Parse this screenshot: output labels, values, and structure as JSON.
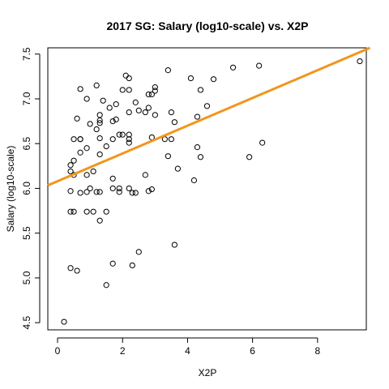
{
  "chart_data": {
    "type": "scatter",
    "title": "2017 SG: Salary (log10-scale) vs. X2P",
    "xlabel": "X2P",
    "ylabel": "Salary (log10-scale)",
    "xlim": [
      -0.3,
      9.5
    ],
    "ylim": [
      4.42,
      7.57
    ],
    "x_ticks": [
      0,
      2,
      4,
      6,
      8
    ],
    "y_ticks": [
      4.5,
      5.0,
      5.5,
      6.0,
      6.5,
      7.0,
      7.5
    ],
    "x_tick_labels": [
      "0",
      "2",
      "4",
      "6",
      "8"
    ],
    "y_tick_labels": [
      "4.5",
      "5.0",
      "5.5",
      "6.0",
      "6.5",
      "7.0",
      "7.5"
    ],
    "grid": false,
    "point_style": "open-circle",
    "point_color": "#000000",
    "trend_line": {
      "intercept": 6.08,
      "slope": 0.155,
      "color": "#f0961e"
    },
    "points": [
      [
        0.2,
        4.51
      ],
      [
        0.4,
        5.11
      ],
      [
        0.6,
        5.08
      ],
      [
        0.4,
        5.74
      ],
      [
        0.5,
        5.74
      ],
      [
        0.4,
        5.97
      ],
      [
        0.4,
        6.19
      ],
      [
        0.4,
        6.26
      ],
      [
        0.5,
        6.15
      ],
      [
        0.5,
        6.31
      ],
      [
        0.5,
        6.55
      ],
      [
        0.6,
        6.78
      ],
      [
        0.7,
        7.11
      ],
      [
        0.7,
        6.55
      ],
      [
        0.7,
        6.4
      ],
      [
        0.7,
        6.55
      ],
      [
        0.7,
        5.95
      ],
      [
        0.9,
        7.0
      ],
      [
        0.9,
        6.45
      ],
      [
        0.9,
        6.15
      ],
      [
        0.9,
        5.74
      ],
      [
        0.9,
        5.96
      ],
      [
        1.0,
        6.72
      ],
      [
        1.0,
        6.0
      ],
      [
        1.1,
        6.19
      ],
      [
        1.1,
        5.74
      ],
      [
        1.2,
        7.15
      ],
      [
        1.2,
        6.66
      ],
      [
        1.2,
        5.96
      ],
      [
        1.3,
        6.82
      ],
      [
        1.3,
        6.76
      ],
      [
        1.3,
        6.73
      ],
      [
        1.3,
        6.56
      ],
      [
        1.3,
        6.38
      ],
      [
        1.3,
        5.96
      ],
      [
        1.3,
        5.64
      ],
      [
        1.4,
        6.98
      ],
      [
        1.5,
        6.47
      ],
      [
        1.5,
        5.74
      ],
      [
        1.5,
        4.92
      ],
      [
        1.6,
        6.9
      ],
      [
        1.7,
        6.75
      ],
      [
        1.7,
        6.55
      ],
      [
        1.7,
        6.11
      ],
      [
        1.7,
        6.0
      ],
      [
        1.7,
        5.16
      ],
      [
        1.8,
        6.94
      ],
      [
        1.8,
        6.77
      ],
      [
        1.9,
        6.6
      ],
      [
        1.9,
        6.0
      ],
      [
        1.9,
        5.96
      ],
      [
        2.0,
        7.1
      ],
      [
        2.0,
        6.6
      ],
      [
        2.1,
        7.26
      ],
      [
        2.2,
        7.23
      ],
      [
        2.2,
        6.85
      ],
      [
        2.2,
        6.6
      ],
      [
        2.2,
        6.55
      ],
      [
        2.2,
        6.51
      ],
      [
        2.2,
        6.0
      ],
      [
        2.2,
        7.1
      ],
      [
        2.3,
        5.95
      ],
      [
        2.3,
        5.14
      ],
      [
        2.4,
        6.96
      ],
      [
        2.4,
        5.95
      ],
      [
        2.5,
        6.87
      ],
      [
        2.5,
        5.29
      ],
      [
        2.7,
        6.15
      ],
      [
        2.7,
        6.85
      ],
      [
        2.8,
        6.9
      ],
      [
        2.8,
        7.05
      ],
      [
        2.8,
        5.97
      ],
      [
        2.9,
        7.05
      ],
      [
        2.9,
        6.57
      ],
      [
        2.9,
        5.99
      ],
      [
        3.0,
        7.13
      ],
      [
        3.0,
        7.09
      ],
      [
        3.0,
        6.82
      ],
      [
        3.3,
        6.55
      ],
      [
        3.4,
        7.32
      ],
      [
        3.4,
        6.36
      ],
      [
        3.5,
        6.85
      ],
      [
        3.5,
        6.55
      ],
      [
        3.6,
        6.74
      ],
      [
        3.6,
        5.37
      ],
      [
        3.7,
        6.22
      ],
      [
        4.1,
        7.23
      ],
      [
        4.2,
        6.09
      ],
      [
        4.3,
        6.8
      ],
      [
        4.3,
        6.46
      ],
      [
        4.4,
        7.1
      ],
      [
        4.4,
        6.35
      ],
      [
        4.6,
        6.92
      ],
      [
        4.8,
        7.22
      ],
      [
        5.4,
        7.35
      ],
      [
        5.9,
        6.35
      ],
      [
        6.2,
        7.37
      ],
      [
        6.3,
        6.51
      ],
      [
        9.3,
        7.42
      ]
    ]
  }
}
